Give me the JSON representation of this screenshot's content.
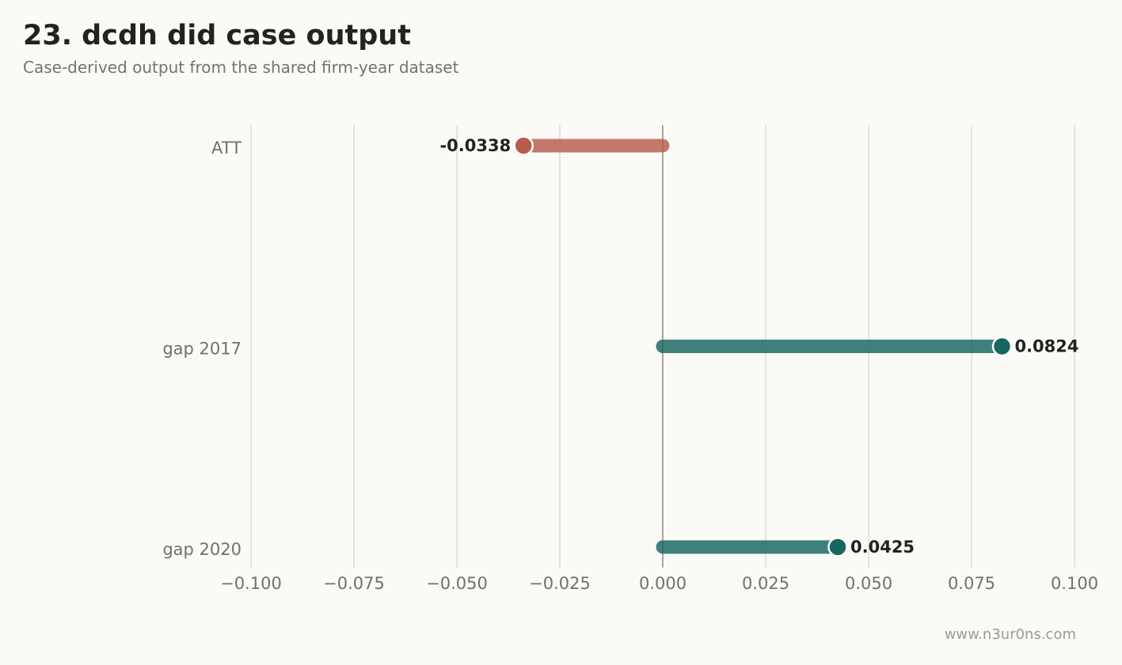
{
  "header": {
    "title": "23. dcdh did case output",
    "subtitle": "Case-derived output from the shared firm-year dataset"
  },
  "footer": {
    "watermark": "www.n3ur0ns.com"
  },
  "colors": {
    "negative": "#b85c4d",
    "positive": "#17675f",
    "grid": "#dcdcd6",
    "zero_line": "#a8a8a4"
  },
  "chart_data": {
    "type": "bar",
    "orientation": "horizontal",
    "style": "lollipop",
    "title": "23. dcdh did case output",
    "subtitle": "Case-derived output from the shared firm-year dataset",
    "xlabel": "",
    "ylabel": "",
    "xlim": [
      -0.1,
      0.1
    ],
    "grid": "vertical",
    "x_ticks": [
      -0.1,
      -0.075,
      -0.05,
      -0.025,
      0.0,
      0.025,
      0.05,
      0.075,
      0.1
    ],
    "x_tick_labels": [
      "−0.100",
      "−0.075",
      "−0.050",
      "−0.025",
      "0.000",
      "0.025",
      "0.050",
      "0.075",
      "0.100"
    ],
    "categories": [
      "ATT",
      "gap 2017",
      "gap 2020"
    ],
    "values": [
      -0.0338,
      0.0824,
      0.0425
    ],
    "value_labels": [
      "-0.0338",
      "0.0824",
      "0.0425"
    ]
  }
}
